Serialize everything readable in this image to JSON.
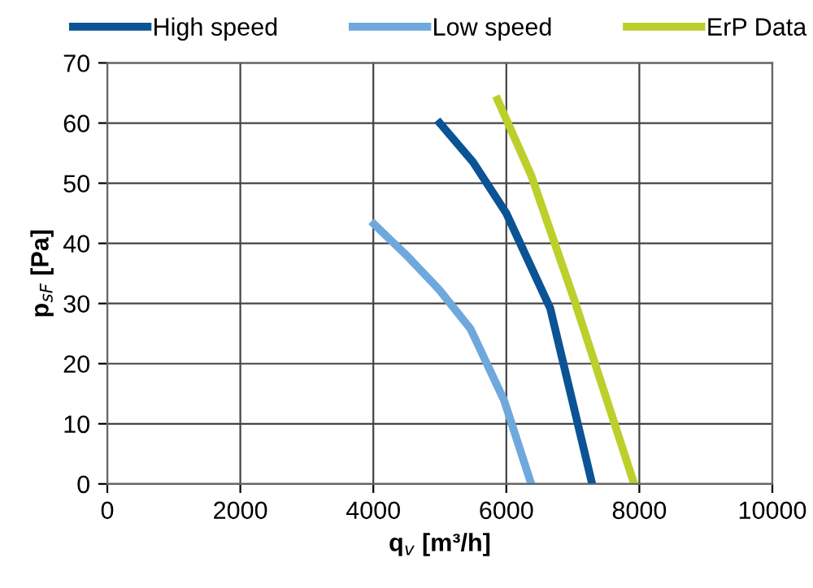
{
  "chart_data": {
    "type": "line",
    "xlabel": "q$_{v}$ [m³/h]",
    "ylabel": "p$_{sF}$ [Pa]",
    "xlim": [
      0,
      10000
    ],
    "ylim": [
      0,
      70
    ],
    "xticks": [
      0,
      2000,
      4000,
      6000,
      8000,
      10000
    ],
    "yticks": [
      0,
      10,
      20,
      30,
      40,
      50,
      60,
      70
    ],
    "grid": true,
    "legend": "top",
    "marker": "none",
    "line_style": "solid",
    "series": [
      {
        "name": "High speed",
        "color": "#0b5394",
        "x": [
          5000,
          5500,
          6000,
          6660,
          7290
        ],
        "values": [
          60,
          53.5,
          45,
          29.2,
          0
        ]
      },
      {
        "name": "Low speed",
        "color": "#6fa8dc",
        "x": [
          4010,
          4500,
          4990,
          5460,
          5966,
          6374
        ],
        "values": [
          43.2,
          38,
          32.3,
          25.8,
          13.9,
          0
        ]
      },
      {
        "name": "ErP Data",
        "color": "#bccf2a",
        "x": [
          5868,
          6374,
          7025,
          7922
        ],
        "values": [
          63.9,
          51.3,
          30.5,
          0
        ]
      }
    ]
  }
}
